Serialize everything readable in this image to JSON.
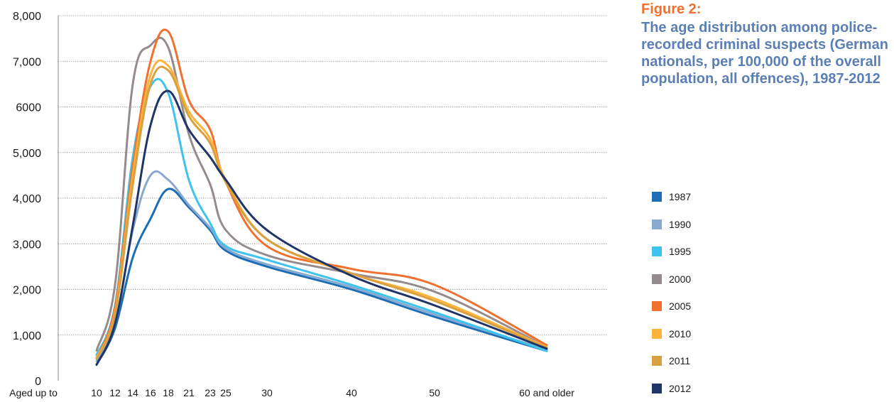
{
  "figure": {
    "label": "Figure 2:",
    "title": "The age distribution among police-recorded criminal suspects (German nationals, per 100,000 of the overall population, all offences), 1987-2012"
  },
  "chart_data": {
    "type": "line",
    "title": "The age distribution among police-recorded criminal suspects (German nationals, per 100,000 of the overall population, all offences), 1987-2012",
    "xlabel": "",
    "ylabel": "",
    "x_ticks": [
      "Aged up to",
      "10",
      "12",
      "14",
      "16",
      "18",
      "21",
      "23",
      "25",
      "30",
      "40",
      "50",
      "60 and older"
    ],
    "y_ticks": [
      "0",
      "1,000",
      "2,000",
      "3,000",
      "4,000",
      "5,000",
      "6000",
      "7,000",
      "8,000"
    ],
    "y_tick_values": [
      0,
      1000,
      2000,
      3000,
      4000,
      5000,
      6000,
      7000,
      8000
    ],
    "ylim": [
      0,
      8000
    ],
    "grid": true,
    "legend_position": "right",
    "categories": [
      "10",
      "12",
      "14",
      "16",
      "18",
      "21",
      "23",
      "25",
      "30",
      "40",
      "50",
      "60 and older"
    ],
    "series": [
      {
        "name": "1987",
        "color": "#1c6db5",
        "values": [
          350,
          1150,
          2700,
          3550,
          4200,
          3800,
          3300,
          2850,
          2500,
          2000,
          1400,
          650
        ]
      },
      {
        "name": "1990",
        "color": "#8aa9cf",
        "values": [
          430,
          1250,
          3300,
          4500,
          4400,
          3850,
          3350,
          2900,
          2550,
          2050,
          1450,
          680
        ]
      },
      {
        "name": "1995",
        "color": "#3ec3ee",
        "values": [
          560,
          1650,
          4900,
          6450,
          6300,
          4400,
          3450,
          2950,
          2650,
          2100,
          1500,
          650
        ]
      },
      {
        "name": "2000",
        "color": "#958a8c",
        "values": [
          660,
          2100,
          6500,
          7350,
          7300,
          5400,
          4300,
          3300,
          2750,
          2350,
          1950,
          740
        ]
      },
      {
        "name": "2005",
        "color": "#f07030",
        "values": [
          500,
          1600,
          4700,
          7000,
          7650,
          6150,
          5500,
          4350,
          2950,
          2450,
          2100,
          780
        ]
      },
      {
        "name": "2010",
        "color": "#fbb33c",
        "values": [
          500,
          1500,
          4500,
          6700,
          6900,
          5900,
          5300,
          4400,
          3100,
          2350,
          1800,
          740
        ]
      },
      {
        "name": "2011",
        "color": "#d9a040",
        "values": [
          480,
          1450,
          4300,
          6500,
          6800,
          5800,
          5200,
          4350,
          3100,
          2350,
          1750,
          720
        ]
      },
      {
        "name": "2012",
        "color": "#1f3569",
        "values": [
          350,
          1250,
          3400,
          5600,
          6350,
          5500,
          4900,
          4400,
          3300,
          2300,
          1650,
          700
        ]
      }
    ]
  }
}
